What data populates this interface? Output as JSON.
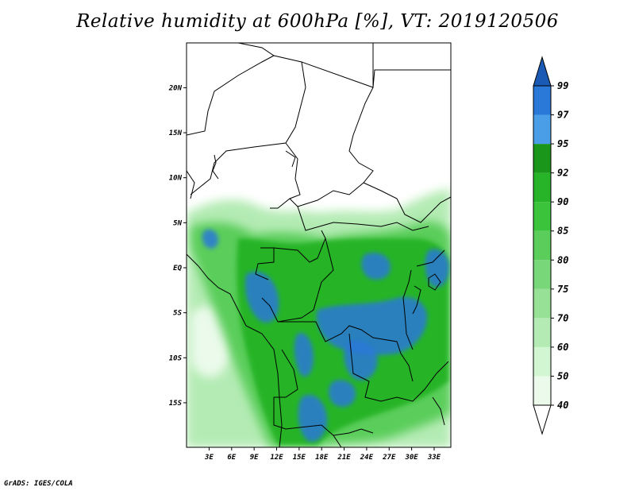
{
  "title": "Relative humidity at 600hPa [%], VT: 2019120506",
  "footer": "GrADS: IGES/COLA",
  "map": {
    "lat_ticks": [
      {
        "lat": 20,
        "label": "20N"
      },
      {
        "lat": 15,
        "label": "15N"
      },
      {
        "lat": 10,
        "label": "10N"
      },
      {
        "lat": 5,
        "label": "5N"
      },
      {
        "lat": 0,
        "label": "EQ"
      },
      {
        "lat": -5,
        "label": "5S"
      },
      {
        "lat": -10,
        "label": "10S"
      },
      {
        "lat": -15,
        "label": "15S"
      }
    ],
    "lon_ticks": [
      {
        "lon": 3,
        "label": "3E"
      },
      {
        "lon": 6,
        "label": "6E"
      },
      {
        "lon": 9,
        "label": "9E"
      },
      {
        "lon": 12,
        "label": "12E"
      },
      {
        "lon": 15,
        "label": "15E"
      },
      {
        "lon": 18,
        "label": "18E"
      },
      {
        "lon": 21,
        "label": "21E"
      },
      {
        "lon": 24,
        "label": "24E"
      },
      {
        "lon": 27,
        "label": "27E"
      },
      {
        "lon": 30,
        "label": "30E"
      },
      {
        "lon": 33,
        "label": "33E"
      }
    ]
  },
  "colorbar": {
    "levels": [
      "40",
      "50",
      "60",
      "70",
      "75",
      "80",
      "85",
      "90",
      "92",
      "95",
      "97",
      "99"
    ],
    "colors": [
      "#ebfaeb",
      "#d2f5d2",
      "#b4ebb4",
      "#96e196",
      "#78d778",
      "#5acd5a",
      "#3cc33c",
      "#28b428",
      "#1a961a",
      "#4a9ee8",
      "#2a78d8",
      "#1a5ab4"
    ]
  },
  "colors": {
    "very_humid": "#2a78d8",
    "humid": "#28b428",
    "moist": "#78d778",
    "dry": "#ffffff"
  }
}
